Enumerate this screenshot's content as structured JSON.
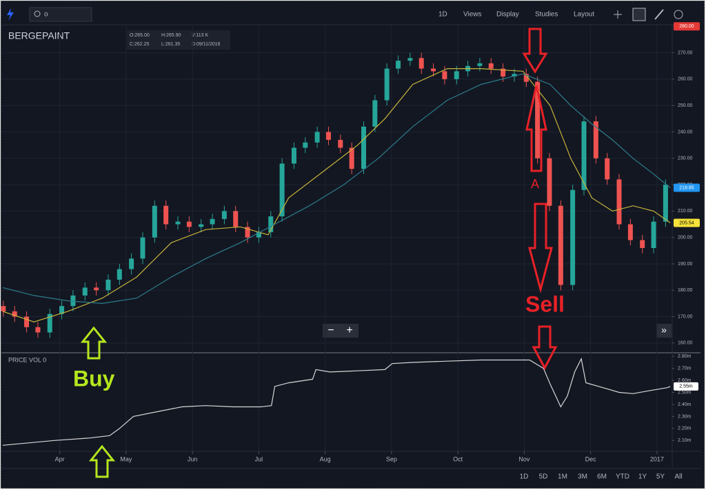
{
  "toolbar": {
    "search": "o",
    "interval": "1D",
    "menus": [
      "Views",
      "Display",
      "Studies",
      "Layout"
    ]
  },
  "legend": {
    "ohlc": [
      "O:265.00",
      "H:265.90",
      "V:113 K",
      "C:262.25",
      "L:261.35",
      "D:09/11/2016"
    ]
  },
  "annotations": {
    "buy": "Buy",
    "sell": "Sell",
    "a": "A"
  },
  "ranges": [
    "1D",
    "5D",
    "1M",
    "3M",
    "6M",
    "YTD",
    "1Y",
    "5Y",
    "All"
  ],
  "zoom": [
    "−",
    "+"
  ],
  "scroll": "»",
  "chart_data": [
    {
      "type": "candlestick",
      "title": "BERGEPAINT",
      "up_color": "#26a69a",
      "down_color": "#ef5350",
      "xlim": [
        -0.88,
        9.23
      ],
      "xticks": [
        {
          "value": 0,
          "label": "Apr"
        },
        {
          "value": 1,
          "label": "May"
        },
        {
          "value": 2,
          "label": "Jun"
        },
        {
          "value": 3,
          "label": "Jul"
        },
        {
          "value": 4,
          "label": "Aug"
        },
        {
          "value": 5,
          "label": "Sep"
        },
        {
          "value": 6,
          "label": "Oct"
        },
        {
          "value": 7,
          "label": "Nov"
        },
        {
          "value": 8,
          "label": "Dec"
        },
        {
          "value": 9,
          "label": "2017"
        }
      ],
      "ylim": [
        156.3,
        280.6
      ],
      "yticks": [
        {
          "value": 160,
          "label": "160.00"
        },
        {
          "value": 170,
          "label": "170.00"
        },
        {
          "value": 180,
          "label": "180.00"
        },
        {
          "value": 190,
          "label": "190.00"
        },
        {
          "value": 200,
          "label": "200.00"
        },
        {
          "value": 210,
          "label": "210.00"
        },
        {
          "value": 220,
          "label": "220.00"
        },
        {
          "value": 230,
          "label": "230.00"
        },
        {
          "value": 240,
          "label": "240.00"
        },
        {
          "value": 250,
          "label": "250.00"
        },
        {
          "value": 260,
          "label": "260.00"
        },
        {
          "value": 270,
          "label": "270.00"
        }
      ],
      "grid": true,
      "x": [
        -0.85,
        -0.68,
        -0.5,
        -0.33,
        -0.15,
        0.03,
        0.2,
        0.38,
        0.55,
        0.73,
        0.9,
        1.08,
        1.25,
        1.43,
        1.6,
        1.78,
        1.95,
        2.13,
        2.3,
        2.48,
        2.65,
        2.83,
        3,
        3.18,
        3.35,
        3.53,
        3.7,
        3.88,
        4.05,
        4.23,
        4.4,
        4.58,
        4.75,
        4.93,
        5.1,
        5.28,
        5.45,
        5.63,
        5.8,
        5.98,
        6.15,
        6.33,
        6.5,
        6.68,
        6.85,
        7.03,
        7.2,
        7.38,
        7.55,
        7.73,
        7.9,
        8.08,
        8.25,
        8.43,
        8.6,
        8.78,
        8.95,
        9.13
      ],
      "open": [
        174,
        172,
        170,
        166,
        164,
        171,
        174,
        178,
        181,
        180,
        184,
        188,
        192,
        200,
        212,
        205,
        206,
        204,
        205,
        207,
        210,
        204,
        200,
        202,
        208,
        228,
        234,
        236,
        240,
        237,
        234,
        226,
        242,
        252,
        264,
        267,
        268,
        264,
        263,
        260,
        263,
        265,
        266,
        264,
        261,
        262,
        259,
        230,
        212,
        182,
        218,
        244,
        230,
        222,
        205,
        199,
        196,
        206
      ],
      "high": [
        176,
        174,
        172,
        168,
        173,
        176,
        180,
        183,
        183,
        186,
        190,
        194,
        202,
        214,
        214,
        208,
        208,
        207,
        209,
        212,
        212,
        206,
        204,
        210,
        230,
        236,
        238,
        242,
        242,
        239,
        236,
        244,
        254,
        266,
        269,
        270,
        270,
        266,
        265,
        265,
        267,
        268,
        268,
        266,
        264,
        264,
        261,
        232,
        214,
        220,
        246,
        246,
        232,
        224,
        207,
        201,
        208,
        222
      ],
      "low": [
        170,
        168,
        164,
        162,
        162,
        169,
        172,
        176,
        178,
        178,
        182,
        186,
        190,
        198,
        203,
        203,
        202,
        202,
        203,
        205,
        202,
        198,
        198,
        200,
        206,
        226,
        232,
        234,
        235,
        232,
        224,
        224,
        240,
        250,
        262,
        265,
        262,
        261,
        258,
        258,
        261,
        263,
        262,
        259,
        259,
        257,
        228,
        210,
        180,
        180,
        216,
        228,
        220,
        203,
        197,
        194,
        194,
        204
      ],
      "close": [
        172,
        170,
        166,
        164,
        171,
        174,
        178,
        181,
        180,
        184,
        188,
        192,
        200,
        212,
        205,
        206,
        204,
        205,
        207,
        210,
        204,
        200,
        202,
        208,
        228,
        234,
        236,
        240,
        237,
        234,
        226,
        242,
        252,
        264,
        267,
        268,
        264,
        263,
        260,
        263,
        265,
        266,
        264,
        261,
        262,
        259,
        230,
        212,
        182,
        218,
        244,
        230,
        222,
        205,
        199,
        196,
        206,
        220
      ],
      "series": [
        {
          "color": "#c8b43a",
          "x": [
            -0.86,
            -0.39,
            0.12,
            0.64,
            1.16,
            1.68,
            2.2,
            2.72,
            3.14,
            3.45,
            3.97,
            4.49,
            4.9,
            5.32,
            5.84,
            6.35,
            6.98,
            7.39,
            7.7,
            8.02,
            8.33,
            8.64,
            8.95,
            9.2
          ],
          "values": [
            172,
            168,
            172,
            177,
            185,
            198,
            203,
            204,
            201,
            215,
            225,
            235,
            245,
            258,
            264,
            264,
            263,
            250,
            230,
            215,
            210,
            212,
            210,
            205.54
          ]
        },
        {
          "color": "#2e7d8c",
          "x": [
            -0.86,
            -0.39,
            0.12,
            0.64,
            1.16,
            1.68,
            2.2,
            2.72,
            3.24,
            3.76,
            4.28,
            4.8,
            5.32,
            5.84,
            6.35,
            6.98,
            7.39,
            7.7,
            8.02,
            8.33,
            8.64,
            8.95,
            9.2
          ],
          "values": [
            181,
            178,
            176,
            175,
            177,
            185,
            192,
            198,
            205,
            212,
            220,
            230,
            242,
            252,
            258,
            262,
            258,
            250,
            243,
            237,
            230,
            224,
            218.85
          ]
        }
      ],
      "price_labels": [
        {
          "value": 280,
          "label": "280.00",
          "color": "#e53935"
        },
        {
          "value": 218.85,
          "color": "#2196f3"
        },
        {
          "value": 205.54,
          "color": "#f5e23a"
        }
      ]
    },
    {
      "type": "line",
      "title": "PRICE VOL 0",
      "color": "#d8d8d8",
      "xlim": [
        -0.88,
        9.23
      ],
      "ylim": [
        2.01,
        2.83
      ],
      "yticks": [
        {
          "value": 2.1,
          "label": "2.10m"
        },
        {
          "value": 2.2,
          "label": "2.20m"
        },
        {
          "value": 2.3,
          "label": "2.30m"
        },
        {
          "value": 2.4,
          "label": "2.40m"
        },
        {
          "value": 2.5,
          "label": "2.50m"
        },
        {
          "value": 2.6,
          "label": "2.60m"
        },
        {
          "value": 2.7,
          "label": "2.70m"
        },
        {
          "value": 2.8,
          "label": "2.80m"
        }
      ],
      "x": [
        -0.86,
        -0.08,
        0.44,
        0.75,
        0.9,
        1.11,
        1.47,
        1.84,
        2.2,
        2.62,
        3.03,
        3.19,
        3.24,
        3.45,
        3.81,
        3.86,
        4.07,
        4.49,
        4.9,
        5.01,
        5.32,
        5.84,
        6.35,
        7.08,
        7.29,
        7.39,
        7.55,
        7.65,
        7.76,
        7.86,
        7.93,
        8.12,
        8.43,
        8.64,
        8.84,
        9.16,
        9.2
      ],
      "values": [
        2.06,
        2.1,
        2.12,
        2.14,
        2.2,
        2.3,
        2.34,
        2.38,
        2.39,
        2.38,
        2.38,
        2.39,
        2.55,
        2.58,
        2.61,
        2.69,
        2.67,
        2.68,
        2.69,
        2.74,
        2.75,
        2.76,
        2.77,
        2.77,
        2.7,
        2.57,
        2.38,
        2.47,
        2.67,
        2.78,
        2.58,
        2.55,
        2.5,
        2.49,
        2.51,
        2.54,
        2.55
      ],
      "last_label": {
        "value": 2.55,
        "label": "2.55m"
      }
    }
  ]
}
